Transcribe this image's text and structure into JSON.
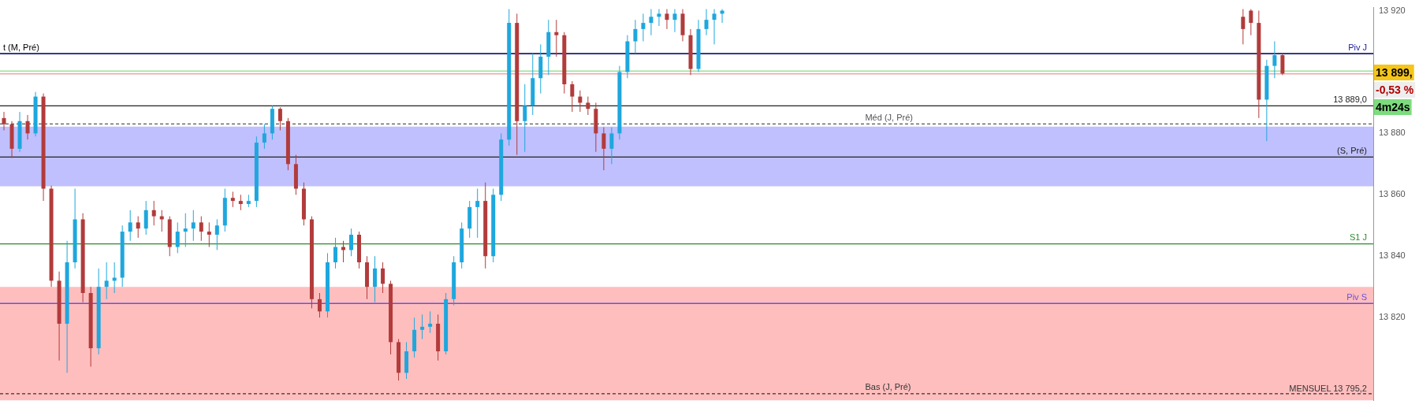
{
  "chart_data": {
    "type": "candlestick",
    "categories": [
      null,
      null,
      null,
      null,
      null,
      null,
      null,
      null,
      null,
      null,
      null,
      null,
      null,
      null,
      null,
      null,
      null,
      null,
      null,
      null,
      null,
      null,
      null,
      null,
      null,
      null,
      null,
      null,
      null,
      null,
      null,
      null,
      null,
      null,
      null,
      null,
      null,
      null,
      null,
      null,
      null,
      null,
      null,
      null,
      null,
      null,
      null,
      null,
      null,
      null,
      null,
      null,
      null,
      null,
      null,
      null,
      null,
      null,
      null,
      null,
      null,
      null,
      null,
      null,
      null,
      null,
      null,
      null,
      null,
      null,
      null,
      null,
      null,
      null,
      null,
      null,
      null,
      null,
      null,
      null,
      null,
      null,
      null,
      null,
      null,
      null,
      null,
      null,
      null,
      null,
      null,
      null,
      null,
      null,
      null,
      null,
      null,
      null,
      null,
      null,
      null,
      null,
      null,
      null,
      null,
      null,
      null,
      null,
      null,
      null,
      null,
      null,
      null,
      null,
      null,
      null,
      null,
      null,
      null,
      null,
      null,
      null,
      null,
      null,
      null,
      null,
      null,
      null,
      null,
      null,
      null,
      null,
      null,
      null,
      null,
      null,
      null,
      null,
      null,
      null,
      null,
      null,
      null,
      null,
      null,
      null,
      null,
      null,
      null,
      null,
      null,
      null,
      null,
      null,
      null,
      null,
      null,
      null,
      null,
      null,
      null,
      null,
      null,
      null,
      null,
      null,
      null,
      null,
      null,
      null,
      null,
      null,
      null,
      null
    ],
    "ohlc": [
      [
        13885,
        13887,
        13881,
        13883
      ],
      [
        13883,
        13884,
        13872,
        13875
      ],
      [
        13875,
        13887,
        13874,
        13884
      ],
      [
        13884,
        13886,
        13878,
        13880
      ],
      [
        13880,
        13893.5,
        13879,
        13892
      ],
      [
        13892,
        13893,
        13858,
        13862
      ],
      [
        13862,
        13863,
        13830,
        13832
      ],
      [
        13832,
        13835,
        13806,
        13818
      ],
      [
        13818,
        13845,
        13802,
        13838
      ],
      [
        13838,
        13862,
        13836,
        13852
      ],
      [
        13852,
        13854,
        13825,
        13828
      ],
      [
        13828,
        13830,
        13804,
        13810
      ],
      [
        13810,
        13836,
        13808,
        13830
      ],
      [
        13830,
        13838,
        13826,
        13832
      ],
      [
        13832,
        13838,
        13828,
        13833
      ],
      [
        13833,
        13850,
        13830,
        13848
      ],
      [
        13848,
        13855,
        13845,
        13851
      ],
      [
        13851,
        13853,
        13846,
        13849
      ],
      [
        13849,
        13858,
        13847,
        13855
      ],
      [
        13855,
        13858,
        13850,
        13853
      ],
      [
        13853,
        13855,
        13848,
        13852
      ],
      [
        13852,
        13853,
        13840,
        13843
      ],
      [
        13843,
        13851,
        13841,
        13848
      ],
      [
        13848,
        13854,
        13843,
        13849
      ],
      [
        13849,
        13855,
        13845,
        13851
      ],
      [
        13851,
        13853,
        13845,
        13848
      ],
      [
        13848,
        13851,
        13843,
        13847
      ],
      [
        13847,
        13852,
        13842,
        13850
      ],
      [
        13850,
        13862,
        13848,
        13859
      ],
      [
        13859,
        13861,
        13856,
        13858
      ],
      [
        13858,
        13860,
        13855,
        13857
      ],
      [
        13857,
        13860,
        13856,
        13858
      ],
      [
        13858,
        13879,
        13856,
        13877
      ],
      [
        13877,
        13883,
        13875,
        13880
      ],
      [
        13880,
        13889,
        13878,
        13888
      ],
      [
        13888,
        13888.5,
        13881,
        13884
      ],
      [
        13884,
        13885,
        13868,
        13870
      ],
      [
        13870,
        13873,
        13860,
        13862
      ],
      [
        13862,
        13864,
        13850,
        13852
      ],
      [
        13852,
        13853,
        13823,
        13826
      ],
      [
        13826,
        13828,
        13820,
        13822
      ],
      [
        13822,
        13841,
        13820,
        13838
      ],
      [
        13838,
        13846,
        13836,
        13843
      ],
      [
        13843,
        13845,
        13838,
        13842
      ],
      [
        13842,
        13849,
        13840,
        13847
      ],
      [
        13847,
        13848,
        13836,
        13838
      ],
      [
        13838,
        13840,
        13826,
        13830
      ],
      [
        13830,
        13840,
        13825,
        13836
      ],
      [
        13836,
        13838,
        13828,
        13831
      ],
      [
        13831,
        13832,
        13808,
        13812
      ],
      [
        13812,
        13813,
        13799.5,
        13802
      ],
      [
        13802,
        13812,
        13800,
        13809
      ],
      [
        13809,
        13820,
        13807,
        13816
      ],
      [
        13816,
        13821,
        13813,
        13817
      ],
      [
        13817,
        13822,
        13815,
        13818
      ],
      [
        13818,
        13821,
        13806,
        13809
      ],
      [
        13809,
        13828,
        13808,
        13826
      ],
      [
        13826,
        13840,
        13824,
        13838
      ],
      [
        13838,
        13851,
        13836,
        13849
      ],
      [
        13849,
        13858,
        13846,
        13856
      ],
      [
        13856,
        13862,
        13846,
        13858
      ],
      [
        13858,
        13864,
        13836,
        13840
      ],
      [
        13840,
        13862,
        13838,
        13860
      ],
      [
        13860,
        13880,
        13858,
        13878
      ],
      [
        13878,
        13920.5,
        13876,
        13916
      ],
      [
        13916,
        13919,
        13873,
        13884
      ],
      [
        13884,
        13896,
        13874,
        13889
      ],
      [
        13889,
        13906,
        13886,
        13898
      ],
      [
        13898,
        13909,
        13893,
        13905
      ],
      [
        13905,
        13917,
        13899,
        13913
      ],
      [
        13913,
        13917,
        13905,
        13912
      ],
      [
        13912,
        13913,
        13893,
        13896
      ],
      [
        13896,
        13897,
        13887,
        13892
      ],
      [
        13892,
        13894,
        13887,
        13890
      ],
      [
        13890,
        13892,
        13886,
        13888
      ],
      [
        13888,
        13890,
        13874,
        13880
      ],
      [
        13880,
        13882,
        13868,
        13875
      ],
      [
        13875,
        13882,
        13870,
        13880
      ],
      [
        13880,
        13902,
        13878,
        13900
      ],
      [
        13900,
        13912,
        13898,
        13910
      ],
      [
        13910,
        13917,
        13906,
        13914
      ],
      [
        13914,
        13919,
        13910,
        13916
      ],
      [
        13916,
        13920.5,
        13912,
        13918
      ],
      [
        13918,
        13920.5,
        13915,
        13919
      ],
      [
        13919,
        13920.5,
        13914,
        13917
      ],
      [
        13917,
        13920.5,
        13913,
        13919
      ],
      [
        13919,
        13920.5,
        13910,
        13912
      ],
      [
        13912,
        13914,
        13899,
        13901
      ],
      [
        13901,
        13917,
        13900,
        13914
      ],
      [
        13914,
        13920.5,
        13912,
        13917
      ],
      [
        13917,
        13920.5,
        13909,
        13919
      ],
      [
        13919,
        13920.5,
        13916,
        13920
      ],
      null,
      null,
      null,
      null,
      null,
      null,
      null,
      null,
      null,
      null,
      null,
      null,
      null,
      null,
      null,
      null,
      null,
      null,
      null,
      null,
      null,
      null,
      null,
      null,
      null,
      null,
      null,
      null,
      null,
      null,
      null,
      null,
      null,
      null,
      null,
      null,
      null,
      null,
      null,
      null,
      null,
      null,
      null,
      null,
      null,
      null,
      null,
      null,
      null,
      null,
      null,
      null,
      null,
      null,
      null,
      null,
      null,
      null,
      null,
      null,
      null,
      null,
      null,
      null,
      null,
      [
        13918,
        13920.5,
        13909,
        13914
      ],
      [
        13920,
        13920.5,
        13912,
        13916
      ],
      [
        13916,
        13920,
        13885,
        13891
      ],
      [
        13891,
        13904,
        13877.5,
        13902
      ],
      [
        13902,
        13910,
        13898,
        13905.5
      ],
      [
        13905.5,
        13906,
        13899,
        13899.5
      ],
      null,
      null,
      null,
      null,
      null,
      null,
      null,
      null,
      null,
      null,
      null
    ],
    "colors": [
      "#b23b3b",
      "#b23b3b",
      "#1ea7dd",
      "#b23b3b",
      "#1ea7dd",
      "#b23b3b",
      "#b23b3b",
      "#b23b3b",
      "#1ea7dd",
      "#1ea7dd",
      "#b23b3b",
      "#b23b3b",
      "#1ea7dd",
      "#1ea7dd",
      "#1ea7dd",
      "#1ea7dd",
      "#1ea7dd",
      "#b23b3b",
      "#1ea7dd",
      "#b23b3b",
      "#b23b3b",
      "#b23b3b",
      "#1ea7dd",
      "#1ea7dd",
      "#1ea7dd",
      "#b23b3b",
      "#b23b3b",
      "#1ea7dd",
      "#1ea7dd",
      "#b23b3b",
      "#b23b3b",
      "#1ea7dd",
      "#1ea7dd",
      "#1ea7dd",
      "#1ea7dd",
      "#b23b3b",
      "#b23b3b",
      "#b23b3b",
      "#b23b3b",
      "#b23b3b",
      "#b23b3b",
      "#1ea7dd",
      "#1ea7dd",
      "#b23b3b",
      "#1ea7dd",
      "#b23b3b",
      "#b23b3b",
      "#1ea7dd",
      "#b23b3b",
      "#b23b3b",
      "#b23b3b",
      "#1ea7dd",
      "#1ea7dd",
      "#1ea7dd",
      "#1ea7dd",
      "#b23b3b",
      "#1ea7dd",
      "#1ea7dd",
      "#1ea7dd",
      "#1ea7dd",
      "#1ea7dd",
      "#b23b3b",
      "#1ea7dd",
      "#1ea7dd",
      "#1ea7dd",
      "#b23b3b",
      "#1ea7dd",
      "#1ea7dd",
      "#1ea7dd",
      "#1ea7dd",
      "#b23b3b",
      "#b23b3b",
      "#b23b3b",
      "#b23b3b",
      "#b23b3b",
      "#b23b3b",
      "#b23b3b",
      "#1ea7dd",
      "#1ea7dd",
      "#1ea7dd",
      "#1ea7dd",
      "#1ea7dd",
      "#1ea7dd",
      "#1ea7dd",
      "#b23b3b",
      "#1ea7dd",
      "#b23b3b",
      "#b23b3b",
      "#1ea7dd",
      "#1ea7dd",
      "#1ea7dd",
      "#1ea7dd",
      null,
      null,
      null,
      null,
      null,
      null,
      null,
      null,
      null,
      null,
      null,
      null,
      null,
      null,
      null,
      null,
      null,
      null,
      null,
      null,
      null,
      null,
      null,
      null,
      null,
      null,
      null,
      null,
      null,
      null,
      null,
      null,
      null,
      null,
      null,
      null,
      null,
      null,
      null,
      null,
      null,
      null,
      null,
      null,
      null,
      null,
      null,
      null,
      null,
      null,
      null,
      null,
      null,
      null,
      null,
      null,
      null,
      null,
      null,
      null,
      null,
      null,
      null,
      null,
      null,
      "#b23b3b",
      "#b23b3b",
      "#b23b3b",
      "#1ea7dd",
      "#1ea7dd",
      "#b23b3b",
      null,
      null,
      null,
      null,
      null,
      null,
      null,
      null,
      null,
      null,
      null
    ],
    "ylim": [
      13793,
      13921
    ],
    "yticks": [
      {
        "value": 13820,
        "label": "13 820"
      },
      {
        "value": 13840,
        "label": "13 840"
      },
      {
        "value": 13860,
        "label": "13 860"
      },
      {
        "value": 13880,
        "label": "13 880"
      },
      {
        "value": 13920,
        "label": "13 920"
      }
    ],
    "tick_labels": "y",
    "grid": false,
    "legend": false,
    "bands": [
      {
        "axis": "y",
        "from": 13862.8,
        "to": 13882.2,
        "color": "#c0c0ff"
      },
      {
        "axis": "y",
        "from": 13793,
        "to": 13830,
        "color": "#ffbebe"
      }
    ],
    "ref_lines": [
      {
        "axis": "y",
        "value": 13906,
        "label": "t (M, Pré)",
        "color": "#000000"
      },
      {
        "axis": "y",
        "value": 13906,
        "label": "Piv J",
        "color": "#1a1a9c"
      },
      {
        "axis": "y",
        "value": 13900.3,
        "color": "#9ae09a"
      },
      {
        "axis": "y",
        "value": 13899.4,
        "color": "#f0a8a8"
      },
      {
        "axis": "y",
        "value": 13889,
        "label": "13 889,0",
        "color": "#222222"
      },
      {
        "axis": "y",
        "value": 13883.1,
        "label": "Méd (J, Pré)",
        "color": "#555555",
        "line_style": "dashed"
      },
      {
        "axis": "y",
        "value": 13872.3,
        "label": "(S, Pré)",
        "color": "#222222"
      },
      {
        "axis": "y",
        "value": 13844,
        "label": "S1 J",
        "color": "#2e8b2e"
      },
      {
        "axis": "y",
        "value": 13824.6,
        "label": "Piv S",
        "color": "#6a50e0"
      },
      {
        "axis": "y",
        "value": 13795.2,
        "label": "Bas (J, Pré)",
        "color": "#333333",
        "line_style": "dashed"
      }
    ],
    "annotations": [
      "13 899,",
      "-0,53 %",
      "4m24s",
      "MENSUEL 13 795,2"
    ]
  }
}
